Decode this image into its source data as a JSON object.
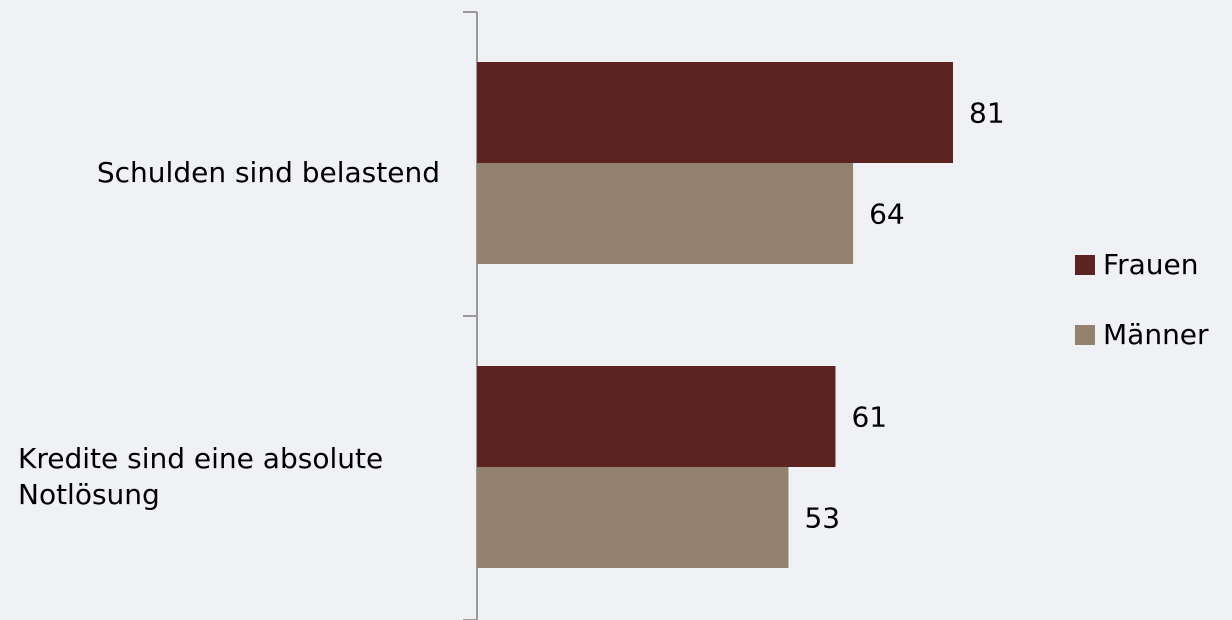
{
  "chart_data": {
    "type": "bar",
    "orientation": "horizontal",
    "categories": [
      [
        "Schulden sind belastend"
      ],
      [
        "Kredite sind eine absolute",
        "Notlösung"
      ]
    ],
    "series": [
      {
        "name": "Frauen",
        "values": [
          81,
          61
        ],
        "color": "#5c2420"
      },
      {
        "name": "Männer",
        "values": [
          64,
          53
        ],
        "color": "#94826e"
      }
    ],
    "xlim": [
      0,
      100
    ],
    "grid": false,
    "legend_position": "right",
    "data_labels": true,
    "title": "",
    "xlabel": "",
    "ylabel": ""
  },
  "colors": {
    "background": "#f0f1f4",
    "axis": "#9a9a9a"
  }
}
